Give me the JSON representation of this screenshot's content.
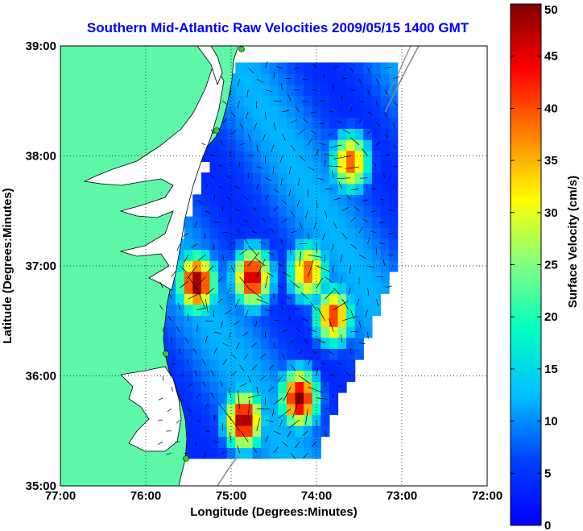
{
  "chart_data": {
    "type": "heatmap",
    "title": "Southern Mid-Atlantic Raw Velocities 2009/05/15 1400 GMT",
    "xlabel": "Longitude (Degrees:Minutes)",
    "ylabel": "Latitude (Degrees:Minutes)",
    "x_ticks": [
      {
        "value": -77,
        "label": "77:00"
      },
      {
        "value": -76,
        "label": "76:00"
      },
      {
        "value": -75,
        "label": "75:00"
      },
      {
        "value": -74,
        "label": "74:00"
      },
      {
        "value": -73,
        "label": "73:00"
      },
      {
        "value": -72,
        "label": "72:00"
      }
    ],
    "y_ticks": [
      {
        "value": 35,
        "label": "35:00"
      },
      {
        "value": 36,
        "label": "36:00"
      },
      {
        "value": 37,
        "label": "37:00"
      },
      {
        "value": 38,
        "label": "38:00"
      },
      {
        "value": 39,
        "label": "39:00"
      }
    ],
    "xlim": [
      -77,
      -72
    ],
    "ylim": [
      35,
      39
    ],
    "grid": true,
    "colorbar": {
      "label": "Surface Velocity (cm/s)",
      "min": 0,
      "max": 50,
      "ticks": [
        0,
        5,
        10,
        15,
        20,
        25,
        30,
        35,
        40,
        45,
        50
      ],
      "colormap": "jet"
    },
    "velocity_field": {
      "lon_range": [
        -75.8,
        -73.1
      ],
      "lat_range": [
        35.3,
        38.85
      ],
      "hotspots": [
        {
          "lon": -75.4,
          "lat": 36.85,
          "speed": 50
        },
        {
          "lon": -74.75,
          "lat": 36.9,
          "speed": 48
        },
        {
          "lon": -74.1,
          "lat": 36.95,
          "speed": 40
        },
        {
          "lon": -74.2,
          "lat": 35.8,
          "speed": 50
        },
        {
          "lon": -74.85,
          "lat": 35.6,
          "speed": 50
        },
        {
          "lon": -73.6,
          "lat": 37.95,
          "speed": 40
        },
        {
          "lon": -73.8,
          "lat": 36.55,
          "speed": 42
        }
      ],
      "background_speed": 8
    }
  }
}
